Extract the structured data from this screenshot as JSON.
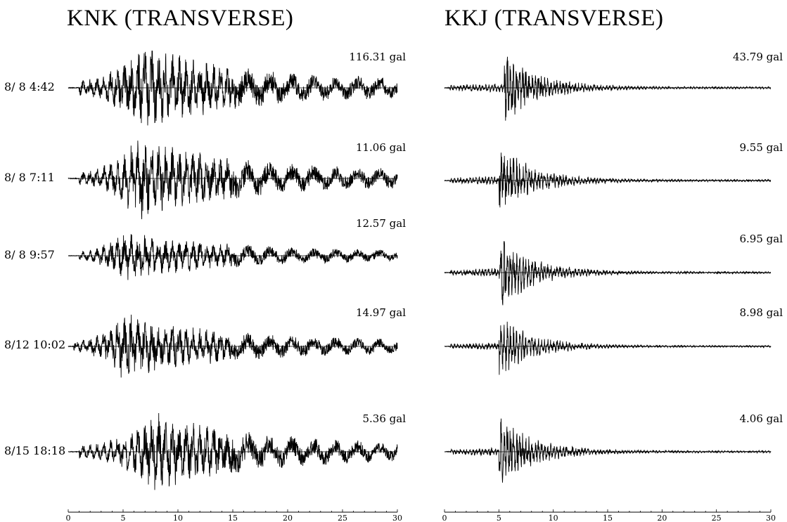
{
  "panels": [
    {
      "title": "KNK (TRANSVERSE)"
    },
    {
      "title": "KKJ (TRANSVERSE)"
    }
  ],
  "events": [
    {
      "label": "8/ 8 4:42"
    },
    {
      "label": "8/ 8 7:11"
    },
    {
      "label": "8/ 8 9:57"
    },
    {
      "label": "8/12 10:02"
    },
    {
      "label": "8/15 18:18"
    }
  ],
  "chart_data": [
    {
      "type": "line",
      "title": "KNK (TRANSVERSE)",
      "xlabel": "",
      "ylabel": "",
      "xlim": [
        0,
        30
      ],
      "xticks": [
        0,
        5,
        10,
        15,
        20,
        25,
        30
      ],
      "grid": false,
      "series": [
        {
          "event": "8/ 8 4:42",
          "peak": "116.31 gal",
          "onset_s": 1.0,
          "peak_time_s": 6.5,
          "end_s": 30
        },
        {
          "event": "8/ 8 7:11",
          "peak": "11.06 gal",
          "onset_s": 1.0,
          "peak_time_s": 6.5,
          "end_s": 30
        },
        {
          "event": "8/ 8 9:57",
          "peak": "12.57 gal",
          "onset_s": 1.0,
          "peak_time_s": 5.0,
          "end_s": 30
        },
        {
          "event": "8/12 10:02",
          "peak": "14.97 gal",
          "onset_s": 0.5,
          "peak_time_s": 5.0,
          "end_s": 30
        },
        {
          "event": "8/15 18:18",
          "peak": "5.36 gal",
          "onset_s": 1.0,
          "peak_time_s": 8.0,
          "end_s": 30
        }
      ]
    },
    {
      "type": "line",
      "title": "KKJ (TRANSVERSE)",
      "xlabel": "",
      "ylabel": "",
      "xlim": [
        0,
        30
      ],
      "xticks": [
        0,
        5,
        10,
        15,
        20,
        25,
        30
      ],
      "grid": false,
      "series": [
        {
          "event": "8/ 8 4:42",
          "peak": "43.79 gal",
          "onset_s": 0.5,
          "peak_time_s": 5.5,
          "end_s": 30
        },
        {
          "event": "8/ 8 7:11",
          "peak": "9.55 gal",
          "onset_s": 0.5,
          "peak_time_s": 5.0,
          "end_s": 30
        },
        {
          "event": "8/ 8 9:57",
          "peak": "6.95 gal",
          "onset_s": 0.5,
          "peak_time_s": 5.0,
          "end_s": 30
        },
        {
          "event": "8/12 10:02",
          "peak": "8.98 gal",
          "onset_s": 0.5,
          "peak_time_s": 5.0,
          "end_s": 30
        },
        {
          "event": "8/15 18:18",
          "peak": "4.06 gal",
          "onset_s": 0.5,
          "peak_time_s": 5.0,
          "end_s": 30
        }
      ]
    }
  ]
}
